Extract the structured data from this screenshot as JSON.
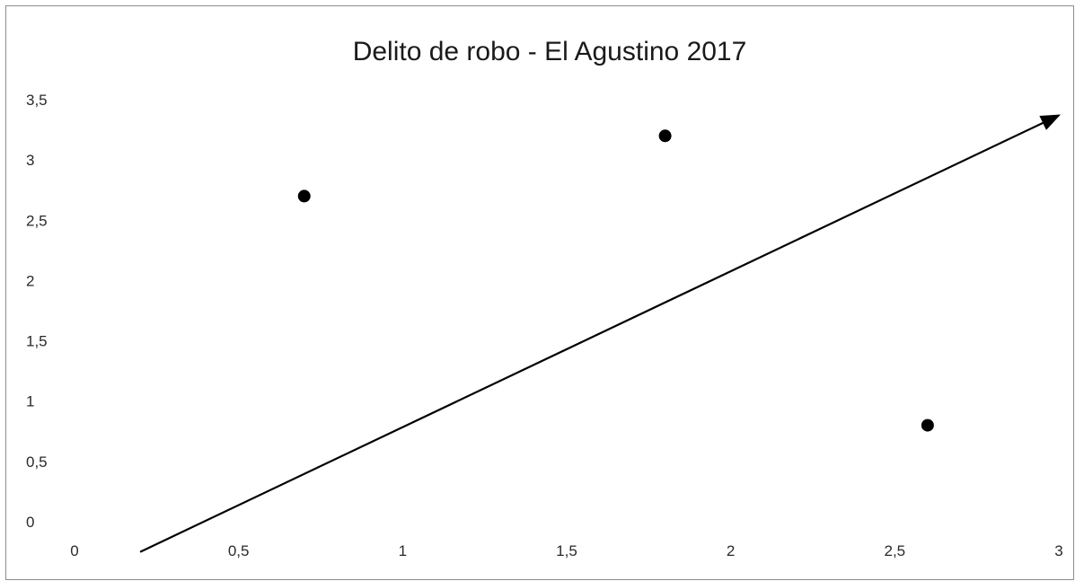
{
  "chart_data": {
    "type": "scatter",
    "title": "Delito de robo - El Agustino 2017",
    "xlabel": "",
    "ylabel": "",
    "xlim": [
      0,
      3
    ],
    "ylim": [
      0,
      3.5
    ],
    "x_ticks": [
      0,
      0.5,
      1,
      1.5,
      2,
      2.5,
      3
    ],
    "x_tick_labels": [
      "0",
      "0,5",
      "1",
      "1,5",
      "2",
      "2,5",
      "3"
    ],
    "y_ticks": [
      0,
      0.5,
      1,
      1.5,
      2,
      2.5,
      3,
      3.5
    ],
    "y_tick_labels": [
      "0",
      "0,5",
      "1",
      "1,5",
      "2",
      "2,5",
      "3",
      "3,5"
    ],
    "grid": false,
    "series": [
      {
        "points": [
          {
            "x": 0.7,
            "y": 2.7
          },
          {
            "x": 1.8,
            "y": 3.2
          },
          {
            "x": 2.6,
            "y": 0.8
          }
        ],
        "color": "#000000"
      }
    ],
    "arrow": {
      "from": {
        "x": 0.2,
        "y": -0.25
      },
      "to": {
        "x": 3.0,
        "y": 3.37
      },
      "color": "#000000"
    }
  }
}
